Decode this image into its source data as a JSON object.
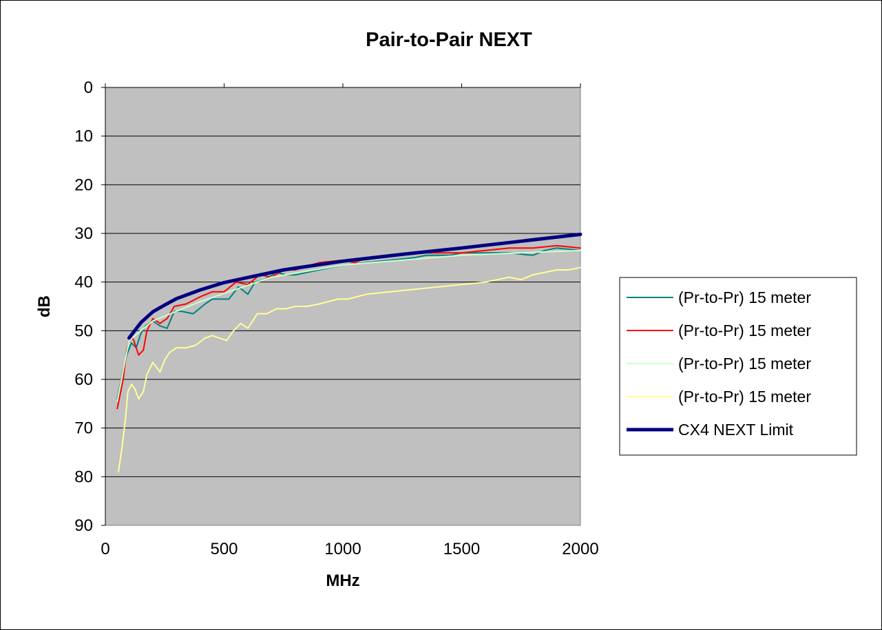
{
  "chart_data": {
    "type": "line",
    "title": "Pair-to-Pair NEXT",
    "xlabel": "MHz",
    "ylabel": "dB",
    "xlim": [
      0,
      2000
    ],
    "ylim": [
      0,
      90
    ],
    "y_inverted": true,
    "x_ticks": [
      0,
      500,
      1000,
      1500,
      2000
    ],
    "y_ticks": [
      0,
      10,
      20,
      30,
      40,
      50,
      60,
      70,
      80,
      90
    ],
    "grid": "horizontal",
    "plot_background": "#c0c0c0",
    "legend_position": "right",
    "series": [
      {
        "name": "(Pr-to-Pr) 15 meter",
        "color": "#008080",
        "width": 2,
        "x": [
          50,
          75,
          90,
          110,
          130,
          150,
          170,
          200,
          230,
          260,
          290,
          320,
          370,
          420,
          450,
          480,
          520,
          560,
          600,
          630,
          670,
          720,
          760,
          800,
          900,
          1000,
          1100,
          1200,
          1300,
          1350,
          1400,
          1450,
          1500,
          1550,
          1600,
          1700,
          1800,
          1850,
          1900,
          2000
        ],
        "y": [
          64,
          58,
          55,
          52.5,
          53.5,
          50.5,
          49,
          48,
          49,
          49.5,
          46,
          46,
          46.5,
          44.5,
          43.5,
          43.5,
          43.5,
          41,
          42.5,
          40,
          39.5,
          38,
          38.5,
          38.5,
          37.5,
          36.5,
          36,
          35.5,
          35,
          34.5,
          34.5,
          34.5,
          34,
          34,
          34,
          34,
          34.5,
          33.5,
          33,
          33.5
        ]
      },
      {
        "name": "(Pr-to-Pr) 15 meter",
        "color": "#ff0000",
        "width": 2,
        "x": [
          50,
          75,
          90,
          105,
          120,
          140,
          160,
          175,
          200,
          230,
          260,
          290,
          340,
          400,
          450,
          500,
          550,
          600,
          650,
          700,
          750,
          800,
          900,
          1000,
          1050,
          1100,
          1200,
          1300,
          1400,
          1500,
          1600,
          1700,
          1800,
          1900,
          2000
        ],
        "y": [
          66,
          60,
          54,
          51,
          52,
          55,
          54,
          50,
          47.5,
          48.5,
          47.5,
          45,
          44.5,
          43,
          42,
          42,
          40,
          40.5,
          38.5,
          39,
          37.5,
          37.5,
          36,
          35.5,
          36,
          35,
          34.5,
          34,
          34,
          34,
          33.5,
          33,
          33,
          32.5,
          33
        ]
      },
      {
        "name": "(Pr-to-Pr) 15 meter",
        "color": "#ccffcc",
        "width": 2,
        "x": [
          50,
          100,
          200,
          400,
          700,
          1000,
          1500,
          2000
        ],
        "y": [
          64.5,
          52,
          48,
          44,
          39,
          36.5,
          34.5,
          33.5
        ]
      },
      {
        "name": "(Pr-to-Pr) 15 meter",
        "color": "#ffff99",
        "width": 2,
        "x": [
          55,
          70,
          85,
          95,
          110,
          125,
          140,
          160,
          175,
          200,
          230,
          250,
          270,
          300,
          340,
          380,
          420,
          450,
          480,
          510,
          540,
          570,
          600,
          640,
          680,
          720,
          760,
          800,
          850,
          900,
          940,
          980,
          1020,
          1060,
          1100,
          1200,
          1300,
          1400,
          1500,
          1600,
          1700,
          1750,
          1800,
          1900,
          1950,
          2000
        ],
        "y": [
          79,
          74,
          68,
          62.5,
          61,
          62,
          64,
          62.5,
          59,
          56.5,
          58.5,
          56,
          54.5,
          53.5,
          53.5,
          53,
          51.5,
          51,
          51.5,
          52,
          50,
          48.5,
          49.5,
          46.5,
          46.5,
          45.5,
          45.5,
          45,
          45,
          44.5,
          44,
          43.5,
          43.5,
          43,
          42.5,
          42,
          41.5,
          41,
          40.5,
          40,
          39,
          39.5,
          38.5,
          37.5,
          37.5,
          37
        ]
      },
      {
        "name": "CX4 NEXT Limit",
        "color": "#000080",
        "width": 5,
        "x": [
          100,
          125,
          150,
          200,
          250,
          300,
          400,
          500,
          625,
          750,
          1000,
          1250,
          1500,
          1750,
          2000
        ],
        "y": [
          51.5,
          49.9,
          48.3,
          46.1,
          44.7,
          43.4,
          41.6,
          40.1,
          38.8,
          37.5,
          35.7,
          34.3,
          33,
          31.6,
          30.2
        ]
      }
    ]
  }
}
